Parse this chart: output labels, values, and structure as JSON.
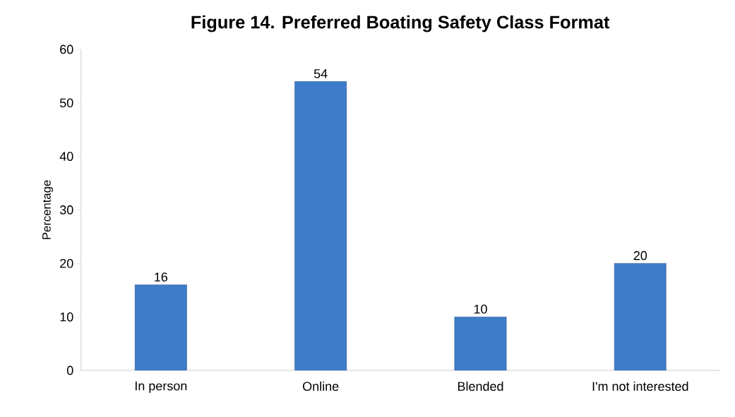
{
  "chart_data": {
    "type": "bar",
    "title": "Figure 14. Preferred Boating Safety Class Format",
    "ylabel": "Percentage",
    "categories": [
      "In person",
      "Online",
      "Blended",
      "I'm not interested"
    ],
    "values": [
      16,
      54,
      10,
      20
    ],
    "color": "#3d7cc9",
    "ylim": [
      0,
      60
    ],
    "yticks": [
      0,
      10,
      20,
      30,
      40,
      50,
      60
    ],
    "data_labels": true,
    "grid": false
  }
}
